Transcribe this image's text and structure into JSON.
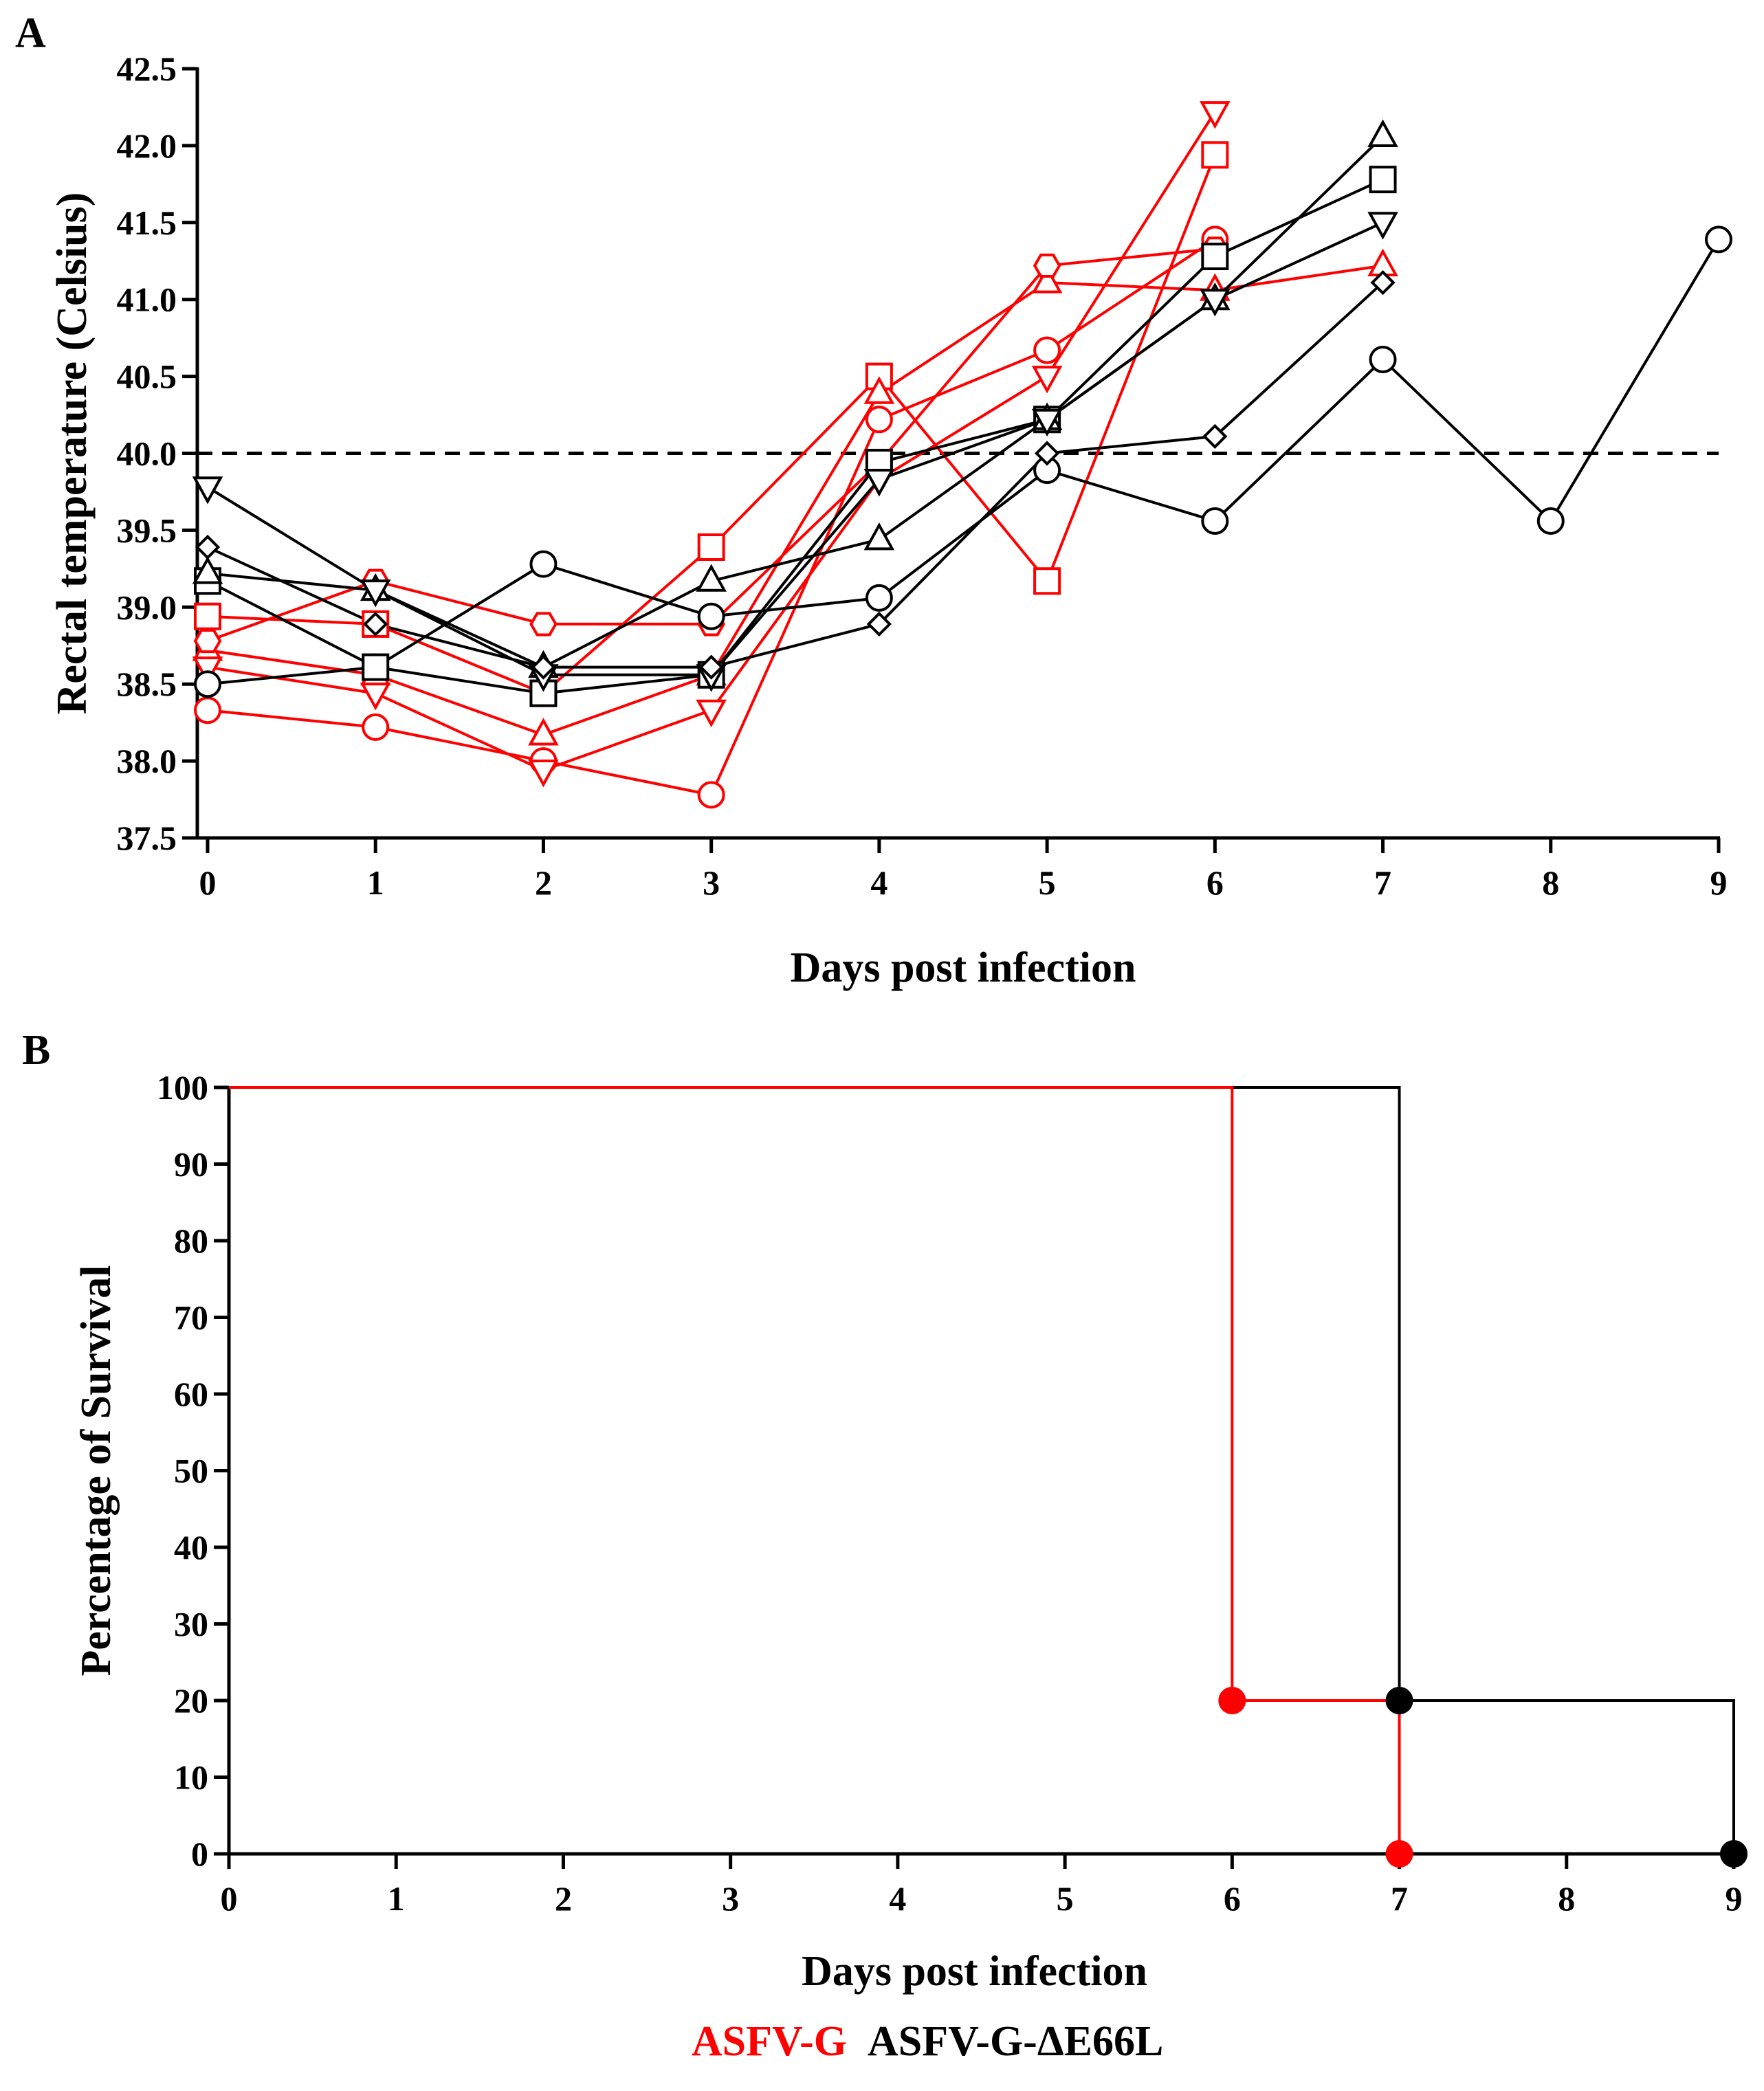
{
  "colors": {
    "asfv_g": "#ff0000",
    "asfv_g_de66l": "#000000",
    "threshold": "#000000"
  },
  "chart_data": [
    {
      "panel": "A",
      "type": "line",
      "xlabel": "Days post infection",
      "ylabel": "Rectal temperature (Celsius)",
      "xlim": [
        0,
        9
      ],
      "ylim": [
        37.5,
        42.5
      ],
      "xticks": [
        "0",
        "1",
        "2",
        "3",
        "4",
        "5",
        "6",
        "7",
        "8",
        "9"
      ],
      "yticks": [
        "37.5",
        "38.0",
        "38.5",
        "39.0",
        "39.5",
        "40.0",
        "40.5",
        "41.0",
        "41.5",
        "42.0",
        "42.5"
      ],
      "threshold": 40.0,
      "threshold_style": "dashed",
      "series": [
        {
          "group": "ASFV-G",
          "marker": "circle",
          "x": [
            0,
            1,
            2,
            3,
            4,
            5,
            6
          ],
          "y": [
            38.33,
            38.22,
            38.0,
            37.78,
            40.22,
            40.67,
            41.39
          ]
        },
        {
          "group": "ASFV-G",
          "marker": "square",
          "x": [
            0,
            1,
            2,
            3,
            4,
            5,
            6
          ],
          "y": [
            38.94,
            38.89,
            38.44,
            39.39,
            40.5,
            39.17,
            41.94
          ]
        },
        {
          "group": "ASFV-G",
          "marker": "triangle-up",
          "x": [
            0,
            1,
            2,
            3,
            4,
            5,
            6,
            7
          ],
          "y": [
            38.72,
            38.56,
            38.17,
            38.56,
            40.39,
            41.11,
            41.06,
            41.22
          ]
        },
        {
          "group": "ASFV-G",
          "marker": "triangle-down",
          "x": [
            0,
            1,
            2,
            3,
            4,
            5,
            6
          ],
          "y": [
            38.61,
            38.44,
            37.94,
            38.33,
            39.83,
            40.5,
            42.22
          ]
        },
        {
          "group": "ASFV-G",
          "marker": "hexagon",
          "x": [
            0,
            1,
            2,
            3,
            4,
            5,
            6
          ],
          "y": [
            38.78,
            39.17,
            38.89,
            38.89,
            39.94,
            41.22,
            41.33
          ]
        },
        {
          "group": "ASFV-G-ΔE66L",
          "marker": "circle",
          "x": [
            0,
            1,
            2,
            3,
            4,
            5,
            6,
            7,
            8,
            9
          ],
          "y": [
            38.5,
            38.61,
            39.28,
            38.94,
            39.06,
            39.89,
            39.56,
            40.61,
            39.56,
            41.39
          ]
        },
        {
          "group": "ASFV-G-ΔE66L",
          "marker": "square",
          "x": [
            0,
            1,
            2,
            3,
            4,
            5,
            6,
            7
          ],
          "y": [
            39.17,
            38.61,
            38.44,
            38.56,
            39.94,
            40.22,
            41.28,
            41.78
          ]
        },
        {
          "group": "ASFV-G-ΔE66L",
          "marker": "triangle-up",
          "x": [
            0,
            1,
            2,
            3,
            4,
            5,
            6,
            7
          ],
          "y": [
            39.22,
            39.11,
            38.61,
            39.17,
            39.44,
            40.22,
            41.0,
            42.06
          ]
        },
        {
          "group": "ASFV-G-ΔE66L",
          "marker": "triangle-down",
          "x": [
            0,
            1,
            2,
            3,
            4,
            5,
            6,
            7
          ],
          "y": [
            39.78,
            39.11,
            38.56,
            38.56,
            39.83,
            40.22,
            41.0,
            41.5
          ]
        },
        {
          "group": "ASFV-G-ΔE66L",
          "marker": "diamond",
          "x": [
            0,
            1,
            2,
            3,
            4,
            5,
            6,
            7
          ],
          "y": [
            39.39,
            38.89,
            38.61,
            38.61,
            38.89,
            40.0,
            40.11,
            41.11
          ]
        }
      ]
    },
    {
      "panel": "B",
      "type": "line",
      "subtype": "survival-step",
      "xlabel": "Days post infection",
      "ylabel": "Percentage of Survival",
      "xlim": [
        0,
        9
      ],
      "ylim": [
        0,
        100
      ],
      "xticks": [
        "0",
        "1",
        "2",
        "3",
        "4",
        "5",
        "6",
        "7",
        "8",
        "9"
      ],
      "yticks": [
        "0",
        "10",
        "20",
        "30",
        "40",
        "50",
        "60",
        "70",
        "80",
        "90",
        "100"
      ],
      "series": [
        {
          "group": "ASFV-G",
          "steps": [
            [
              0,
              100
            ],
            [
              6,
              20
            ],
            [
              7,
              0
            ]
          ],
          "markers": [
            [
              6,
              20
            ],
            [
              7,
              0
            ]
          ]
        },
        {
          "group": "ASFV-G-ΔE66L",
          "steps": [
            [
              0,
              100
            ],
            [
              7,
              20
            ],
            [
              9,
              0
            ]
          ],
          "markers": [
            [
              7,
              20
            ],
            [
              9,
              0
            ]
          ]
        }
      ]
    }
  ],
  "legend": [
    {
      "label": "ASFV-G",
      "color": "#ff0000"
    },
    {
      "label": "ASFV-G-ΔE66L",
      "color": "#000000"
    }
  ]
}
